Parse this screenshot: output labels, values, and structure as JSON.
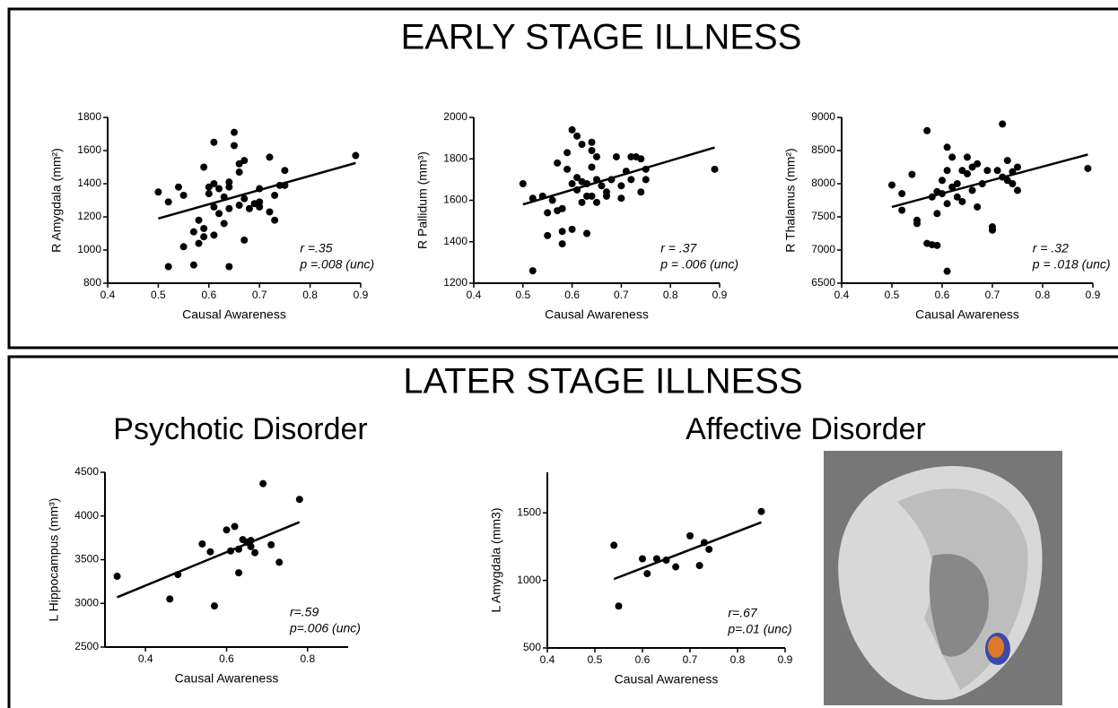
{
  "sections": [
    {
      "title": "EARLY STAGE ILLNESS"
    },
    {
      "title": "LATER STAGE ILLNESS"
    }
  ],
  "chart_data": [
    {
      "type": "scatter",
      "x_label": "Causal Awareness",
      "y_label": "R Amygdala (mm²)",
      "color": "#000000",
      "x": [
        0.5,
        0.52,
        0.52,
        0.54,
        0.55,
        0.55,
        0.57,
        0.57,
        0.58,
        0.58,
        0.59,
        0.59,
        0.59,
        0.6,
        0.6,
        0.61,
        0.61,
        0.61,
        0.61,
        0.62,
        0.62,
        0.63,
        0.63,
        0.64,
        0.64,
        0.64,
        0.64,
        0.65,
        0.65,
        0.66,
        0.66,
        0.66,
        0.67,
        0.67,
        0.67,
        0.68,
        0.69,
        0.7,
        0.7,
        0.7,
        0.72,
        0.72,
        0.73,
        0.73,
        0.74,
        0.75,
        0.75,
        0.89
      ],
      "values": [
        1350,
        1290,
        900,
        1380,
        1330,
        1020,
        1110,
        910,
        1180,
        1040,
        1500,
        1130,
        1080,
        1380,
        1340,
        1650,
        1400,
        1260,
        1090,
        1370,
        1220,
        1160,
        1320,
        1410,
        1380,
        1250,
        900,
        1710,
        1630,
        1470,
        1520,
        1270,
        1540,
        1310,
        1060,
        1250,
        1280,
        1290,
        1370,
        1260,
        1560,
        1230,
        1180,
        1330,
        1390,
        1390,
        1480,
        1570
      ],
      "trend_x": [
        0.5,
        0.89
      ],
      "trend_y": [
        1190,
        1525
      ],
      "xlim": [
        0.4,
        0.9
      ],
      "xticks": [
        0.4,
        0.5,
        0.6,
        0.7,
        0.8,
        0.9
      ],
      "ylim": [
        800,
        1800
      ],
      "yticks": [
        800,
        1000,
        1200,
        1400,
        1600,
        1800
      ],
      "annotations": [
        "r =.35",
        "p =.008 (unc)"
      ]
    },
    {
      "type": "scatter",
      "x_label": "Causal Awareness",
      "y_label": "R Pallidum (mm³)",
      "color": "#000000",
      "x": [
        0.5,
        0.52,
        0.52,
        0.54,
        0.55,
        0.55,
        0.56,
        0.57,
        0.57,
        0.58,
        0.58,
        0.58,
        0.59,
        0.59,
        0.6,
        0.6,
        0.6,
        0.61,
        0.61,
        0.61,
        0.62,
        0.62,
        0.62,
        0.63,
        0.63,
        0.63,
        0.64,
        0.64,
        0.64,
        0.64,
        0.65,
        0.65,
        0.65,
        0.66,
        0.67,
        0.67,
        0.68,
        0.69,
        0.7,
        0.7,
        0.71,
        0.72,
        0.72,
        0.73,
        0.74,
        0.74,
        0.75,
        0.75,
        0.89
      ],
      "values": [
        1680,
        1610,
        1260,
        1620,
        1540,
        1430,
        1600,
        1780,
        1550,
        1560,
        1390,
        1450,
        1830,
        1750,
        1940,
        1680,
        1460,
        1910,
        1710,
        1650,
        1870,
        1690,
        1590,
        1620,
        1440,
        1680,
        1880,
        1840,
        1760,
        1620,
        1810,
        1700,
        1590,
        1670,
        1620,
        1640,
        1700,
        1810,
        1670,
        1610,
        1740,
        1810,
        1700,
        1810,
        1800,
        1640,
        1750,
        1700,
        1750
      ],
      "trend_x": [
        0.5,
        0.89
      ],
      "trend_y": [
        1580,
        1855
      ],
      "xlim": [
        0.4,
        0.9
      ],
      "xticks": [
        0.4,
        0.5,
        0.6,
        0.7,
        0.8,
        0.9
      ],
      "ylim": [
        1200,
        2000
      ],
      "yticks": [
        1200,
        1400,
        1600,
        1800,
        2000
      ],
      "annotations": [
        "r = .37",
        "p = .006 (unc)"
      ]
    },
    {
      "type": "scatter",
      "x_label": "Causal Awareness",
      "y_label": "R Thalamus (mm²)",
      "color": "#000000",
      "x": [
        0.5,
        0.52,
        0.52,
        0.54,
        0.55,
        0.55,
        0.57,
        0.57,
        0.58,
        0.58,
        0.59,
        0.59,
        0.59,
        0.6,
        0.6,
        0.61,
        0.61,
        0.61,
        0.61,
        0.62,
        0.62,
        0.63,
        0.63,
        0.64,
        0.64,
        0.65,
        0.65,
        0.66,
        0.66,
        0.67,
        0.67,
        0.68,
        0.69,
        0.7,
        0.7,
        0.71,
        0.72,
        0.72,
        0.73,
        0.73,
        0.74,
        0.74,
        0.75,
        0.75,
        0.89
      ],
      "values": [
        7980,
        7600,
        7850,
        8140,
        7450,
        7400,
        8800,
        7100,
        7080,
        7800,
        7070,
        7550,
        7880,
        8050,
        7850,
        8550,
        8200,
        7700,
        6680,
        8400,
        7950,
        8000,
        7800,
        8200,
        7730,
        8150,
        8400,
        8250,
        7900,
        8300,
        7650,
        8000,
        8200,
        7300,
        7350,
        8200,
        8900,
        8100,
        8350,
        8050,
        8180,
        8000,
        8250,
        7900,
        8230
      ],
      "trend_x": [
        0.5,
        0.89
      ],
      "trend_y": [
        7650,
        8440
      ],
      "xlim": [
        0.4,
        0.9
      ],
      "xticks": [
        0.4,
        0.5,
        0.6,
        0.7,
        0.8,
        0.9
      ],
      "ylim": [
        6500,
        9000
      ],
      "yticks": [
        6500,
        7000,
        7500,
        8000,
        8500,
        9000
      ],
      "annotations": [
        "r = .32",
        "p = .018 (unc)"
      ]
    },
    {
      "type": "scatter",
      "title": "Psychotic Disorder",
      "x_label": "Causal Awareness",
      "y_label": "L Hippocampus (mm³)",
      "color": "#000000",
      "x": [
        0.33,
        0.46,
        0.48,
        0.54,
        0.56,
        0.57,
        0.6,
        0.61,
        0.62,
        0.63,
        0.63,
        0.64,
        0.65,
        0.66,
        0.66,
        0.67,
        0.69,
        0.71,
        0.73,
        0.78
      ],
      "values": [
        3310,
        3050,
        3330,
        3680,
        3590,
        2970,
        3840,
        3600,
        3880,
        3350,
        3620,
        3730,
        3700,
        3650,
        3720,
        3580,
        4370,
        3670,
        3470,
        4190
      ],
      "trend_x": [
        0.33,
        0.78
      ],
      "trend_y": [
        3070,
        3930
      ],
      "xlim": [
        0.3,
        0.9
      ],
      "xticks": [
        0.4,
        0.6,
        0.8
      ],
      "ylim": [
        2500,
        4500
      ],
      "yticks": [
        2500,
        3000,
        3500,
        4000,
        4500
      ],
      "annotations": [
        "r=.59",
        "p=.006 (unc)"
      ]
    },
    {
      "type": "scatter",
      "title": "Affective Disorder",
      "x_label": "Causal Awareness",
      "y_label": "L Amygdala (mm3)",
      "color": "#000000",
      "x": [
        0.54,
        0.55,
        0.6,
        0.61,
        0.63,
        0.65,
        0.67,
        0.7,
        0.72,
        0.73,
        0.74,
        0.85
      ],
      "values": [
        1260,
        810,
        1160,
        1050,
        1160,
        1150,
        1100,
        1330,
        1110,
        1280,
        1230,
        1510
      ],
      "trend_x": [
        0.54,
        0.85
      ],
      "trend_y": [
        1010,
        1430
      ],
      "xlim": [
        0.4,
        0.9
      ],
      "xticks": [
        0.4,
        0.5,
        0.6,
        0.7,
        0.8,
        0.9
      ],
      "ylim": [
        500,
        1800
      ],
      "yticks": [
        500,
        1000,
        1500
      ],
      "annotations": [
        "r=.67",
        "p=.01 (unc)"
      ]
    }
  ]
}
